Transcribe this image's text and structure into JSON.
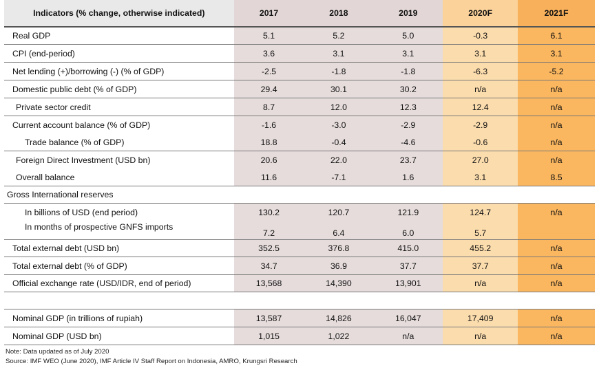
{
  "header": {
    "indicator": "Indicators (% change, otherwise indicated)",
    "years": [
      "2017",
      "2018",
      "2019",
      "2020F",
      "2021F"
    ]
  },
  "rows": [
    {
      "label": "Real GDP",
      "v": [
        "5.1",
        "5.2",
        "5.0",
        "-0.3",
        "6.1"
      ]
    },
    {
      "label": "CPI (end-period)",
      "v": [
        "3.6",
        "3.1",
        "3.1",
        "3.1",
        "3.1"
      ]
    },
    {
      "label": "Net lending (+)/borrowing (-) (% of GDP)",
      "v": [
        "-2.5",
        "-1.8",
        "-1.8",
        "-6.3",
        "-5.2"
      ]
    },
    {
      "label": "Domestic public debt (% of GDP)",
      "v": [
        "29.4",
        "30.1",
        "30.2",
        "n/a",
        "n/a"
      ]
    },
    {
      "label": "Private sector credit",
      "v": [
        "8.7",
        "12.0",
        "12.3",
        "12.4",
        "n/a"
      ]
    },
    {
      "label": "Current account balance (% of GDP)",
      "v": [
        "-1.6",
        "-3.0",
        "-2.9",
        "-2.9",
        "n/a"
      ]
    },
    {
      "label": "Trade balance (% of GDP)",
      "v": [
        "18.8",
        "-0.4",
        "-4.6",
        "-0.6",
        "n/a"
      ]
    },
    {
      "label": "Foreign Direct Investment (USD bn)",
      "v": [
        "20.6",
        "22.0",
        "23.7",
        "27.0",
        "n/a"
      ]
    },
    {
      "label": "Overall balance",
      "v": [
        "11.6",
        "-7.1",
        "1.6",
        "3.1",
        "8.5"
      ]
    },
    {
      "label": "Gross International reserves"
    },
    {
      "label": "In billions of USD (end period)",
      "v": [
        "130.2",
        "120.7",
        "121.9",
        "124.7",
        "n/a"
      ]
    },
    {
      "label": "In months of prospective GNFS imports",
      "v": [
        "7.2",
        "6.4",
        "6.0",
        "5.7",
        ""
      ]
    },
    {
      "label": "Total external debt (USD bn)",
      "v": [
        "352.5",
        "376.8",
        "415.0",
        "455.2",
        "n/a"
      ]
    },
    {
      "label": "Total external debt (% of GDP)",
      "v": [
        "34.7",
        "36.9",
        "37.7",
        "37.7",
        "n/a"
      ]
    },
    {
      "label": "Official exchange rate (USD/IDR, end of period)",
      "v": [
        "13,568",
        "14,390",
        "13,901",
        "n/a",
        "n/a"
      ]
    },
    {
      "label": "Nominal GDP (in trillions of rupiah)",
      "v": [
        "13,587",
        "14,826",
        "16,047",
        "17,409",
        "n/a"
      ]
    },
    {
      "label": "Nominal GDP (USD bn)",
      "v": [
        "1,015",
        "1,022",
        "n/a",
        "n/a",
        "n/a"
      ]
    }
  ],
  "notes": {
    "note": "Note: Data updated as of July 2020",
    "source": "Source: IMF WEO (June 2020),  IMF  Article IV Staff Report on Indonesia, AMRO,  Krungsri Research"
  }
}
